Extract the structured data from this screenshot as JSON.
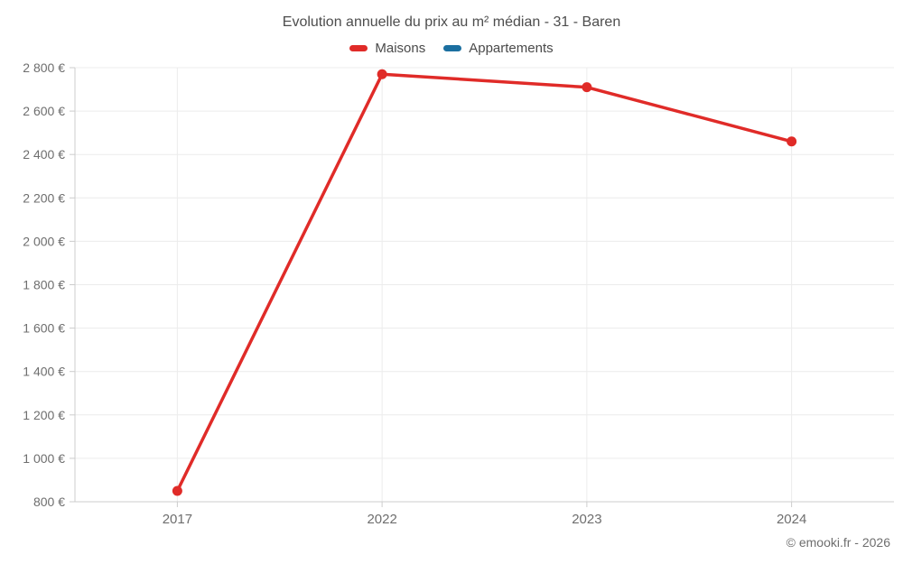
{
  "title": "Evolution annuelle du prix au m² médian - 31 - Baren",
  "copyright": "© emooki.fr - 2026",
  "legend": {
    "items": [
      {
        "label": "Maisons",
        "color": "#e02b28"
      },
      {
        "label": "Appartements",
        "color": "#1b6fa0"
      }
    ]
  },
  "chart_data": {
    "type": "line",
    "title": "Evolution annuelle du prix au m² médian - 31 - Baren",
    "categories": [
      "2017",
      "2022",
      "2023",
      "2024"
    ],
    "series": [
      {
        "name": "Maisons",
        "color": "#e02b28",
        "values": [
          850,
          2770,
          2710,
          2460
        ]
      },
      {
        "name": "Appartements",
        "color": "#1b6fa0",
        "values": []
      }
    ],
    "xlabel": "",
    "ylabel": "",
    "ylim": [
      800,
      2800
    ],
    "y_tick_step": 200,
    "y_tick_labels": [
      "800 €",
      "1 000 €",
      "1 200 €",
      "1 400 €",
      "1 600 €",
      "1 800 €",
      "2 000 €",
      "2 200 €",
      "2 400 €",
      "2 600 €",
      "2 800 €"
    ],
    "grid": true,
    "legend_position": "top",
    "colors": {
      "grid_line": "#ececec",
      "axis_line": "#cccccc",
      "tick_mark": "#cccccc",
      "tick_text": "#6e6e6e"
    }
  }
}
